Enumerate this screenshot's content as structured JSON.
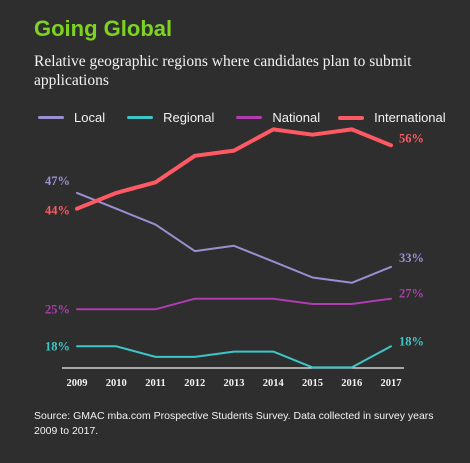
{
  "title": "Going Global",
  "subtitle": "Relative geographic regions where candidates plan to submit applications",
  "source": "Source: GMAC mba.com Prospective Students Survey. Data collected in survey years 2009 to 2017.",
  "chart_data": {
    "type": "line",
    "title": "Going Global",
    "subtitle": "Relative geographic regions where candidates plan to submit applications",
    "xlabel": "",
    "ylabel": "",
    "categories": [
      "2009",
      "2010",
      "2011",
      "2012",
      "2013",
      "2014",
      "2015",
      "2016",
      "2017"
    ],
    "ylim": [
      10,
      65
    ],
    "grid": false,
    "legend_position": "top",
    "series": [
      {
        "name": "Local",
        "color": "#9b8fd1",
        "values": [
          47,
          44,
          41,
          36,
          37,
          34,
          31,
          30,
          33
        ],
        "start_label": "47%",
        "end_label": "33%"
      },
      {
        "name": "Regional",
        "color": "#3ec6c6",
        "values": [
          18,
          18,
          16,
          16,
          17,
          17,
          14,
          14,
          18
        ],
        "start_label": "18%",
        "end_label": "18%"
      },
      {
        "name": "National",
        "color": "#b03cb0",
        "values": [
          25,
          25,
          25,
          27,
          27,
          27,
          26,
          26,
          27
        ],
        "start_label": "25%",
        "end_label": "27%"
      },
      {
        "name": "International",
        "color": "#ff5a63",
        "values": [
          44,
          47,
          49,
          54,
          55,
          59,
          58,
          59,
          56
        ],
        "start_label": "44%",
        "end_label": "56%"
      }
    ]
  }
}
